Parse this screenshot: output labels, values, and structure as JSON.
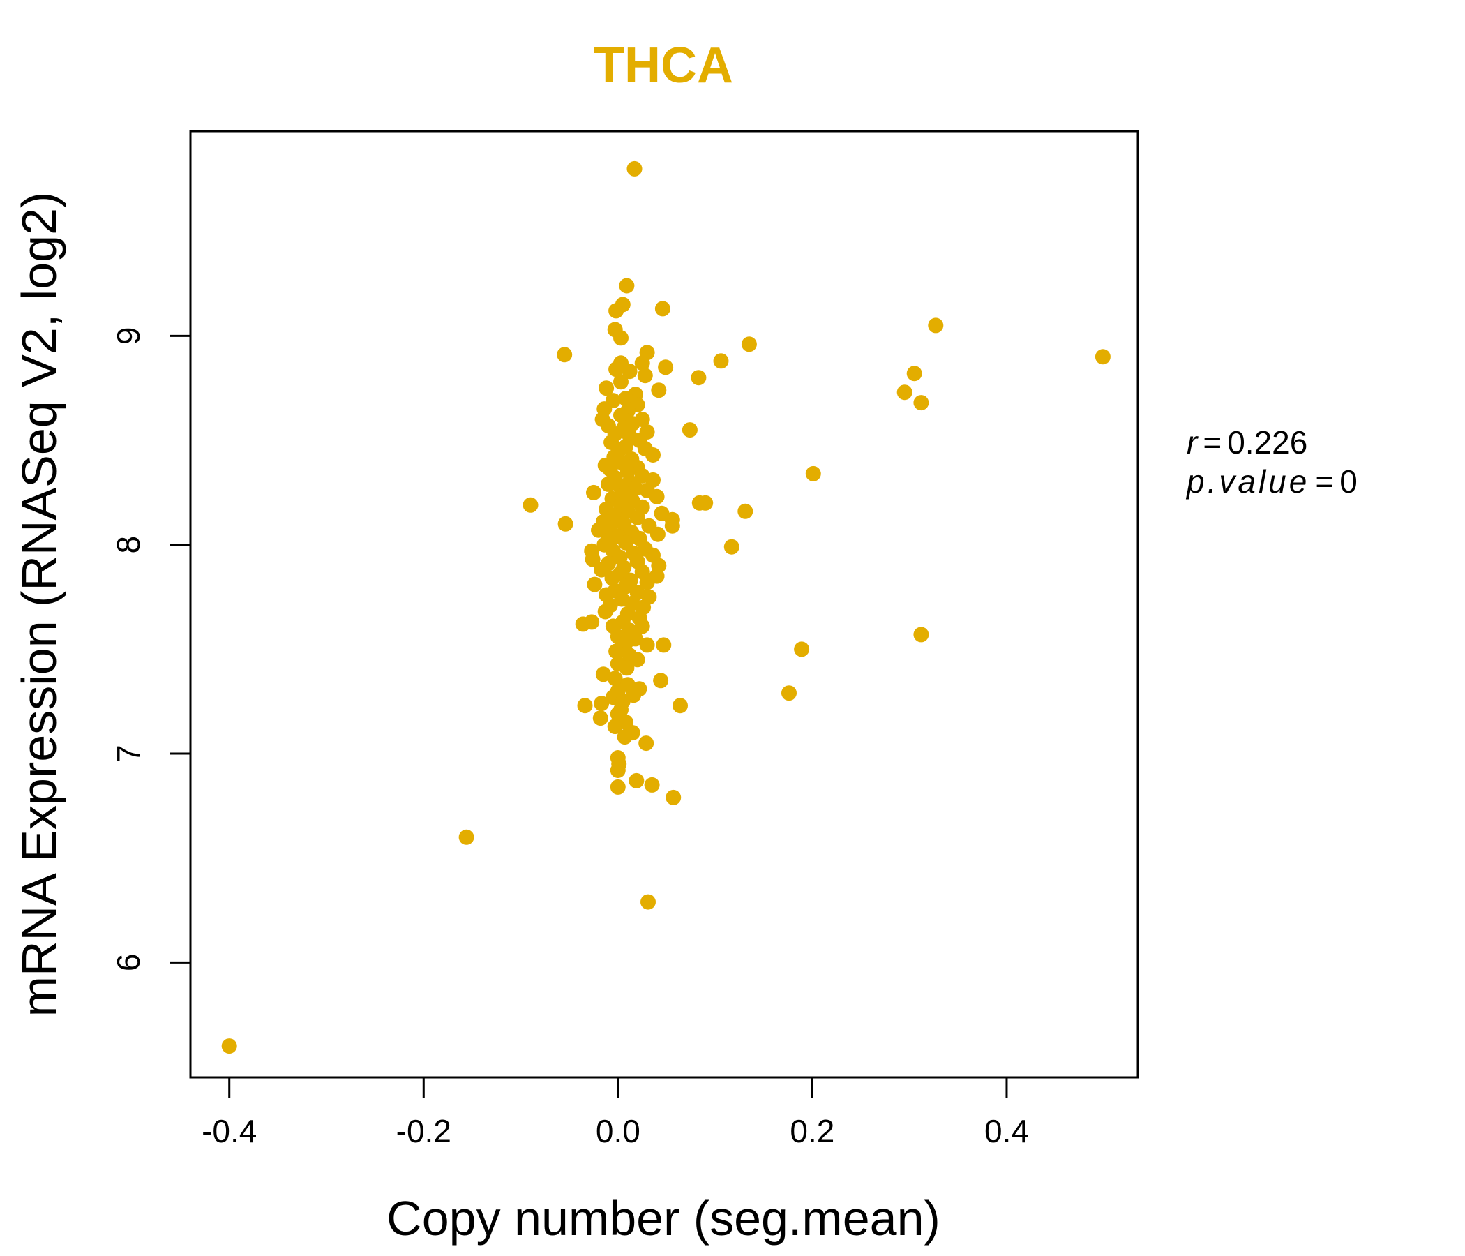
{
  "chart_data": {
    "type": "scatter",
    "title": "THCA",
    "xlabel": "Copy number (seg.mean)",
    "ylabel": "mRNA Expression (RNASeq V2, log2)",
    "xlim": [
      -0.44,
      0.535
    ],
    "ylim": [
      5.45,
      9.98
    ],
    "x_ticks": [
      -0.4,
      -0.2,
      0.0,
      0.2,
      0.4
    ],
    "x_tick_labels": [
      "-0.4",
      "-0.2",
      "0.0",
      "0.2",
      "0.4"
    ],
    "y_ticks": [
      6,
      7,
      8,
      9
    ],
    "y_tick_labels": [
      "6",
      "7",
      "8",
      "9"
    ],
    "annotation": {
      "r_label": "r",
      "r_value": "0.226",
      "p_label": "p.value",
      "p_value": "0"
    },
    "colors": {
      "points": "#E3AD00",
      "title": "#E3AD00",
      "axis": "#000000"
    },
    "points": [
      {
        "x": 0.017,
        "y": 9.8
      },
      {
        "x": 0.009,
        "y": 9.24
      },
      {
        "x": 0.046,
        "y": 9.13
      },
      {
        "x": 0.005,
        "y": 9.15
      },
      {
        "x": -0.002,
        "y": 9.12
      },
      {
        "x": 0.327,
        "y": 9.05
      },
      {
        "x": -0.003,
        "y": 9.03
      },
      {
        "x": 0.003,
        "y": 8.99
      },
      {
        "x": 0.135,
        "y": 8.96
      },
      {
        "x": 0.03,
        "y": 8.92
      },
      {
        "x": -0.055,
        "y": 8.91
      },
      {
        "x": 0.499,
        "y": 8.9
      },
      {
        "x": 0.106,
        "y": 8.88
      },
      {
        "x": 0.003,
        "y": 8.87
      },
      {
        "x": 0.025,
        "y": 8.87
      },
      {
        "x": 0.049,
        "y": 8.85
      },
      {
        "x": -0.002,
        "y": 8.84
      },
      {
        "x": 0.012,
        "y": 8.83
      },
      {
        "x": 0.305,
        "y": 8.82
      },
      {
        "x": 0.028,
        "y": 8.81
      },
      {
        "x": 0.083,
        "y": 8.8
      },
      {
        "x": 0.003,
        "y": 8.78
      },
      {
        "x": -0.012,
        "y": 8.75
      },
      {
        "x": 0.042,
        "y": 8.74
      },
      {
        "x": 0.295,
        "y": 8.73
      },
      {
        "x": 0.018,
        "y": 8.72
      },
      {
        "x": 0.008,
        "y": 8.7
      },
      {
        "x": -0.005,
        "y": 8.69
      },
      {
        "x": 0.312,
        "y": 8.68
      },
      {
        "x": 0.02,
        "y": 8.67
      },
      {
        "x": -0.014,
        "y": 8.65
      },
      {
        "x": 0.01,
        "y": 8.64
      },
      {
        "x": 0.003,
        "y": 8.62
      },
      {
        "x": -0.016,
        "y": 8.6
      },
      {
        "x": 0.025,
        "y": 8.6
      },
      {
        "x": 0.015,
        "y": 8.58
      },
      {
        "x": -0.01,
        "y": 8.57
      },
      {
        "x": 0.006,
        "y": 8.56
      },
      {
        "x": 0.074,
        "y": 8.55
      },
      {
        "x": 0.03,
        "y": 8.54
      },
      {
        "x": -0.003,
        "y": 8.53
      },
      {
        "x": 0.012,
        "y": 8.52
      },
      {
        "x": 0.022,
        "y": 8.5
      },
      {
        "x": -0.007,
        "y": 8.49
      },
      {
        "x": 0.008,
        "y": 8.47
      },
      {
        "x": 0.028,
        "y": 8.46
      },
      {
        "x": 0.001,
        "y": 8.45
      },
      {
        "x": 0.036,
        "y": 8.43
      },
      {
        "x": -0.004,
        "y": 8.42
      },
      {
        "x": 0.014,
        "y": 8.41
      },
      {
        "x": 0.005,
        "y": 8.39
      },
      {
        "x": -0.013,
        "y": 8.38
      },
      {
        "x": 0.02,
        "y": 8.37
      },
      {
        "x": -0.008,
        "y": 8.36
      },
      {
        "x": 0.01,
        "y": 8.35
      },
      {
        "x": 0.201,
        "y": 8.34
      },
      {
        "x": 0.025,
        "y": 8.33
      },
      {
        "x": -0.003,
        "y": 8.32
      },
      {
        "x": 0.036,
        "y": 8.31
      },
      {
        "x": 0.012,
        "y": 8.3
      },
      {
        "x": -0.01,
        "y": 8.29
      },
      {
        "x": 0.002,
        "y": 8.28
      },
      {
        "x": 0.018,
        "y": 8.27
      },
      {
        "x": 0.03,
        "y": 8.26
      },
      {
        "x": -0.025,
        "y": 8.25
      },
      {
        "x": 0.007,
        "y": 8.24
      },
      {
        "x": 0.04,
        "y": 8.23
      },
      {
        "x": -0.006,
        "y": 8.22
      },
      {
        "x": 0.015,
        "y": 8.21
      },
      {
        "x": 0.084,
        "y": 8.2
      },
      {
        "x": -0.09,
        "y": 8.19
      },
      {
        "x": 0.09,
        "y": 8.2
      },
      {
        "x": 0.003,
        "y": 8.19
      },
      {
        "x": 0.025,
        "y": 8.18
      },
      {
        "x": -0.012,
        "y": 8.17
      },
      {
        "x": 0.131,
        "y": 8.16
      },
      {
        "x": 0.01,
        "y": 8.16
      },
      {
        "x": 0.045,
        "y": 8.15
      },
      {
        "x": -0.004,
        "y": 8.14
      },
      {
        "x": 0.02,
        "y": 8.13
      },
      {
        "x": 0.056,
        "y": 8.12
      },
      {
        "x": -0.015,
        "y": 8.11
      },
      {
        "x": -0.054,
        "y": 8.1
      },
      {
        "x": 0.006,
        "y": 8.1
      },
      {
        "x": 0.032,
        "y": 8.09
      },
      {
        "x": 0.056,
        "y": 8.09
      },
      {
        "x": -0.008,
        "y": 8.08
      },
      {
        "x": -0.02,
        "y": 8.07
      },
      {
        "x": 0.014,
        "y": 8.06
      },
      {
        "x": 0.041,
        "y": 8.05
      },
      {
        "x": 0.0,
        "y": 8.04
      },
      {
        "x": 0.022,
        "y": 8.03
      },
      {
        "x": -0.01,
        "y": 8.02
      },
      {
        "x": 0.008,
        "y": 8.01
      },
      {
        "x": -0.014,
        "y": 8.0
      },
      {
        "x": 0.117,
        "y": 7.99
      },
      {
        "x": 0.028,
        "y": 7.98
      },
      {
        "x": -0.005,
        "y": 7.97
      },
      {
        "x": -0.027,
        "y": 7.97
      },
      {
        "x": 0.016,
        "y": 7.96
      },
      {
        "x": 0.036,
        "y": 7.95
      },
      {
        "x": 0.002,
        "y": 7.94
      },
      {
        "x": -0.026,
        "y": 7.93
      },
      {
        "x": 0.02,
        "y": 7.92
      },
      {
        "x": -0.01,
        "y": 7.91
      },
      {
        "x": 0.042,
        "y": 7.9
      },
      {
        "x": 0.006,
        "y": 7.89
      },
      {
        "x": -0.017,
        "y": 7.88
      },
      {
        "x": 0.025,
        "y": 7.87
      },
      {
        "x": 0.002,
        "y": 7.86
      },
      {
        "x": 0.04,
        "y": 7.85
      },
      {
        "x": -0.006,
        "y": 7.84
      },
      {
        "x": 0.013,
        "y": 7.83
      },
      {
        "x": 0.03,
        "y": 7.82
      },
      {
        "x": -0.024,
        "y": 7.81
      },
      {
        "x": 0.008,
        "y": 7.8
      },
      {
        "x": -0.003,
        "y": 7.78
      },
      {
        "x": 0.02,
        "y": 7.77
      },
      {
        "x": -0.012,
        "y": 7.76
      },
      {
        "x": 0.032,
        "y": 7.75
      },
      {
        "x": 0.004,
        "y": 7.74
      },
      {
        "x": 0.015,
        "y": 7.72
      },
      {
        "x": -0.008,
        "y": 7.71
      },
      {
        "x": 0.026,
        "y": 7.7
      },
      {
        "x": -0.013,
        "y": 7.68
      },
      {
        "x": 0.01,
        "y": 7.67
      },
      {
        "x": 0.022,
        "y": 7.65
      },
      {
        "x": -0.027,
        "y": 7.63
      },
      {
        "x": 0.005,
        "y": 7.63
      },
      {
        "x": -0.036,
        "y": 7.62
      },
      {
        "x": -0.005,
        "y": 7.61
      },
      {
        "x": 0.025,
        "y": 7.61
      },
      {
        "x": 0.012,
        "y": 7.59
      },
      {
        "x": 0.312,
        "y": 7.57
      },
      {
        "x": 0.0,
        "y": 7.56
      },
      {
        "x": 0.018,
        "y": 7.55
      },
      {
        "x": 0.008,
        "y": 7.53
      },
      {
        "x": 0.03,
        "y": 7.52
      },
      {
        "x": 0.047,
        "y": 7.52
      },
      {
        "x": 0.189,
        "y": 7.5
      },
      {
        "x": -0.002,
        "y": 7.49
      },
      {
        "x": 0.012,
        "y": 7.47
      },
      {
        "x": 0.02,
        "y": 7.45
      },
      {
        "x": 0.0,
        "y": 7.43
      },
      {
        "x": 0.009,
        "y": 7.41
      },
      {
        "x": -0.015,
        "y": 7.38
      },
      {
        "x": -0.003,
        "y": 7.36
      },
      {
        "x": 0.044,
        "y": 7.35
      },
      {
        "x": 0.01,
        "y": 7.33
      },
      {
        "x": 0.022,
        "y": 7.31
      },
      {
        "x": 0.0,
        "y": 7.3
      },
      {
        "x": 0.176,
        "y": 7.29
      },
      {
        "x": 0.016,
        "y": 7.28
      },
      {
        "x": -0.005,
        "y": 7.27
      },
      {
        "x": 0.005,
        "y": 7.25
      },
      {
        "x": -0.017,
        "y": 7.24
      },
      {
        "x": -0.034,
        "y": 7.23
      },
      {
        "x": 0.064,
        "y": 7.23
      },
      {
        "x": 0.003,
        "y": 7.21
      },
      {
        "x": 0.0,
        "y": 7.19
      },
      {
        "x": -0.018,
        "y": 7.17
      },
      {
        "x": 0.008,
        "y": 7.15
      },
      {
        "x": -0.003,
        "y": 7.13
      },
      {
        "x": 0.015,
        "y": 7.1
      },
      {
        "x": 0.007,
        "y": 7.08
      },
      {
        "x": 0.029,
        "y": 7.05
      },
      {
        "x": 0.0,
        "y": 6.98
      },
      {
        "x": 0.001,
        "y": 6.95
      },
      {
        "x": 0.0,
        "y": 6.92
      },
      {
        "x": 0.019,
        "y": 6.87
      },
      {
        "x": 0.035,
        "y": 6.85
      },
      {
        "x": 0.0,
        "y": 6.84
      },
      {
        "x": 0.057,
        "y": 6.79
      },
      {
        "x": -0.156,
        "y": 6.6
      },
      {
        "x": 0.031,
        "y": 6.29
      },
      {
        "x": -0.4,
        "y": 5.6
      }
    ]
  }
}
